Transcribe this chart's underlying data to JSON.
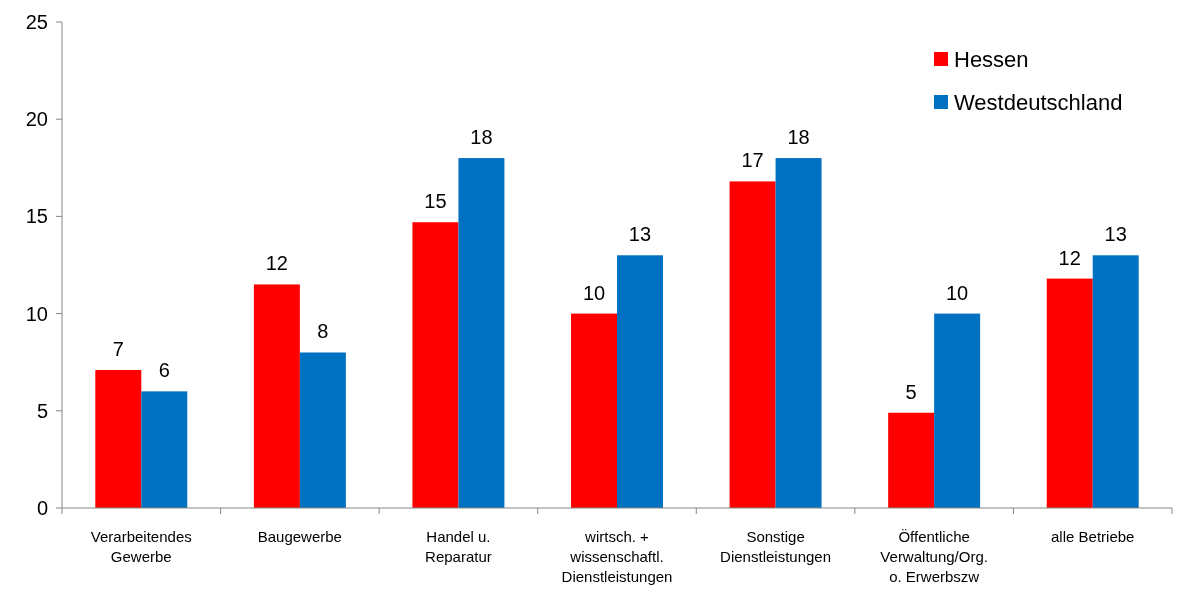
{
  "chart_data": {
    "type": "bar",
    "categories": [
      "Verarbeitendes Gewerbe",
      "Baugewerbe",
      "Handel u. Reparatur",
      "wirtsch. + wissenschaftl. Dienstleistungen",
      "Sonstige Dienstleistungen",
      "Öffentliche Verwaltung/Org. o. Erwerbszw",
      "alle Betriebe"
    ],
    "series": [
      {
        "name": "Hessen",
        "color": "#ff0000",
        "values": [
          7.1,
          11.5,
          14.7,
          10,
          16.8,
          4.9,
          11.8
        ],
        "value_labels": [
          "7",
          "12",
          "15",
          "10",
          "17",
          "5",
          "12"
        ]
      },
      {
        "name": "Westdeutschland",
        "color": "#0070c0",
        "values": [
          6,
          8,
          18,
          13,
          18,
          10,
          13
        ],
        "value_labels": [
          "6",
          "8",
          "18",
          "13",
          "18",
          "10",
          "13"
        ]
      }
    ],
    "ylim": [
      0,
      25
    ],
    "yticks": [
      0,
      5,
      10,
      15,
      20,
      25
    ],
    "grid": false,
    "legend": "top right"
  }
}
